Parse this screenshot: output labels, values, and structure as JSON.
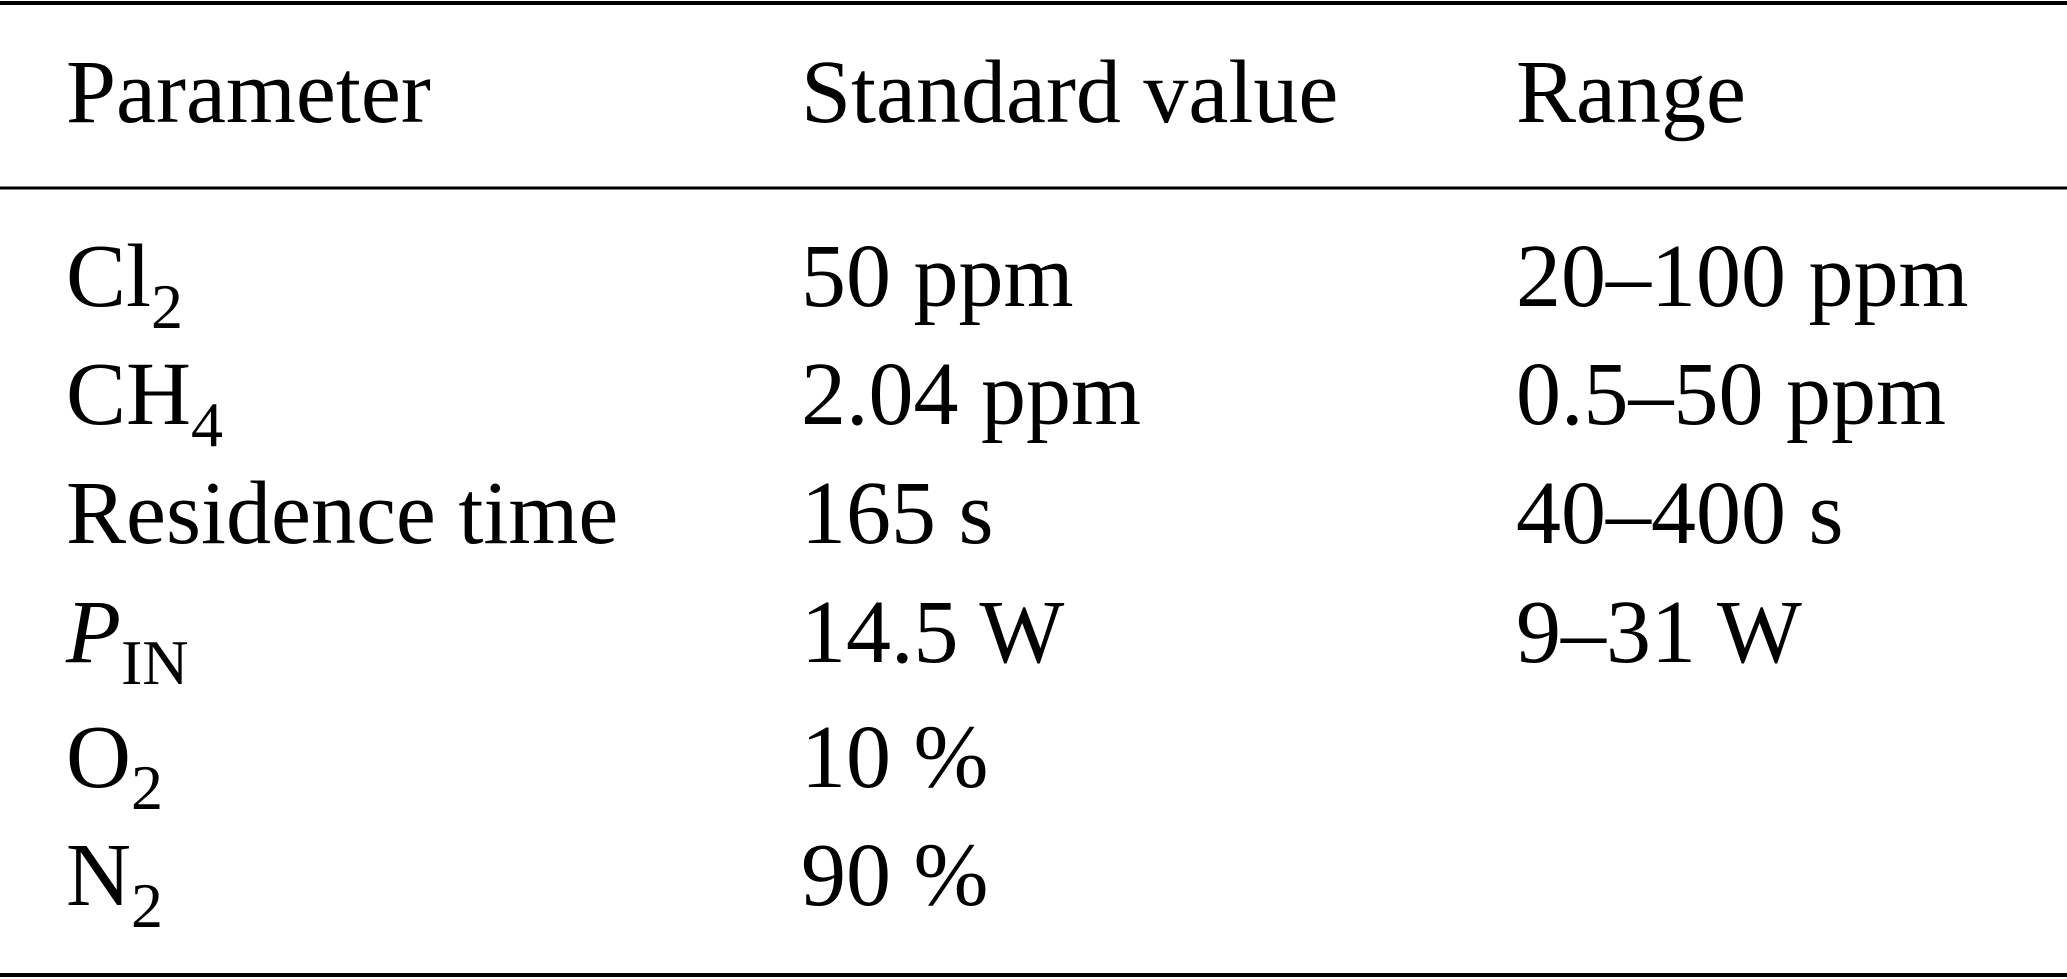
{
  "table": {
    "header": [
      "Parameter",
      "Standard value",
      "Range"
    ],
    "rows": [
      [
        {
          "text": "Cl",
          "sub": "2"
        },
        "50 ppm",
        "20–100 ppm"
      ],
      [
        {
          "text": "CH",
          "sub": "4"
        },
        "2.04 ppm",
        "0.5–50 ppm"
      ],
      [
        {
          "text": "Residence time"
        },
        "165 s",
        "40–400 s"
      ],
      [
        {
          "text": "P",
          "sub": "IN",
          "italic": true
        },
        "14.5 W",
        "9–31 W"
      ],
      [
        {
          "text": "O",
          "sub": "2"
        },
        "10 %",
        null
      ],
      [
        {
          "text": "N",
          "sub": "2"
        },
        "90 %",
        null
      ]
    ]
  }
}
